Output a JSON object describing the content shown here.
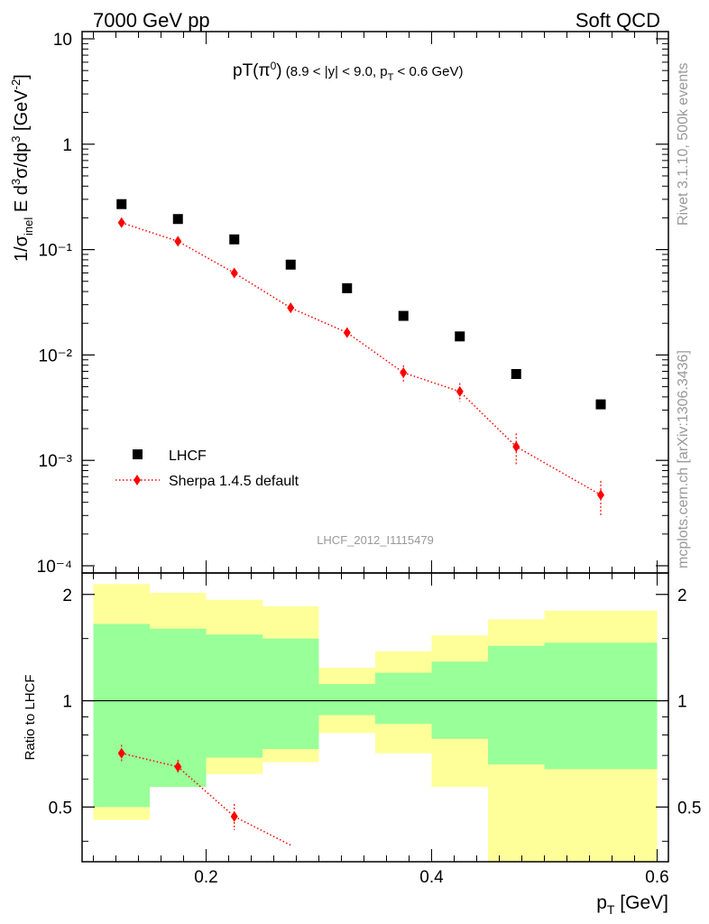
{
  "header": {
    "energy_label": "7000 GeV pp",
    "process_label": "Soft QCD"
  },
  "side_labels": {
    "rivet": "Rivet 3.1.10,  500k events",
    "mcplots": "mcplots.cern.ch [arXiv:1306.3436]"
  },
  "analysis_id": "LHCF_2012_I1115479",
  "colors": {
    "data": "#000000",
    "mc": "#ff0000",
    "band_inner": "#99ff99",
    "band_outer": "#ffff99"
  },
  "chart_data": [
    {
      "type": "scatter",
      "panel": "main",
      "title": "pT(π⁰) (8.9 < |y| < 9.0, pT < 0.6 GeV)",
      "ylabel": "1/σinel E d³σ/dp³ [GeV⁻²]",
      "yscale": "log",
      "ylim": [
        0.0001,
        10
      ],
      "xlim": [
        0.09,
        0.61
      ],
      "y_ticks": [
        "10",
        "1",
        "10⁻¹",
        "10⁻²",
        "10⁻³",
        "10⁻⁴"
      ],
      "legend_position": "bottom-left",
      "series": [
        {
          "name": "LHCF",
          "marker": "square",
          "x": [
            0.125,
            0.175,
            0.225,
            0.275,
            0.325,
            0.375,
            0.425,
            0.475,
            0.55
          ],
          "y": [
            0.27,
            0.195,
            0.125,
            0.072,
            0.043,
            0.0235,
            0.015,
            0.0066,
            0.0034
          ]
        },
        {
          "name": "Sherpa 1.4.5 default",
          "marker": "diamond",
          "line": "dotted",
          "x": [
            0.125,
            0.175,
            0.225,
            0.275,
            0.325,
            0.375,
            0.425,
            0.475,
            0.55
          ],
          "y": [
            0.18,
            0.12,
            0.06,
            0.028,
            0.0163,
            0.0068,
            0.0045,
            0.00135,
            0.00047
          ],
          "y_err_up": [
            0.016,
            0.01,
            0.006,
            0.003,
            0.0018,
            0.0012,
            0.0009,
            0.00045,
            0.00017
          ],
          "y_err_down": [
            0.016,
            0.01,
            0.006,
            0.003,
            0.0018,
            0.0012,
            0.0009,
            0.00045,
            0.00017
          ]
        }
      ]
    },
    {
      "type": "area",
      "panel": "ratio",
      "xlabel": "pT [GeV]",
      "ylabel": "Ratio to LHCF",
      "ylim": [
        0.35,
        2.3
      ],
      "xlim": [
        0.09,
        0.61
      ],
      "x_ticks": [
        "0.2",
        "0.4",
        "0.6"
      ],
      "y_ticks": [
        "0.5",
        "1",
        "2"
      ],
      "bins": [
        [
          0.1,
          0.15
        ],
        [
          0.15,
          0.2
        ],
        [
          0.2,
          0.25
        ],
        [
          0.25,
          0.3
        ],
        [
          0.3,
          0.35
        ],
        [
          0.35,
          0.4
        ],
        [
          0.4,
          0.45
        ],
        [
          0.45,
          0.5
        ],
        [
          0.5,
          0.6
        ]
      ],
      "band_inner": {
        "low": [
          0.5,
          0.57,
          0.69,
          0.73,
          0.91,
          0.86,
          0.78,
          0.66,
          0.64
        ],
        "high": [
          1.65,
          1.6,
          1.54,
          1.5,
          1.115,
          1.2,
          1.29,
          1.43,
          1.46
        ]
      },
      "band_outer": {
        "low": [
          0.46,
          0.57,
          0.62,
          0.67,
          0.81,
          0.71,
          0.57,
          0.0,
          0.0
        ],
        "high": [
          2.14,
          2.02,
          1.93,
          1.85,
          1.24,
          1.38,
          1.53,
          1.7,
          1.8
        ]
      },
      "reference_line": 1,
      "series": [
        {
          "name": "Sherpa 1.4.5 default",
          "x": [
            0.125,
            0.175,
            0.225,
            0.275
          ],
          "y": [
            0.71,
            0.65,
            0.47,
            0.39
          ],
          "y_err": [
            0.04,
            0.03,
            0.04,
            0.0
          ]
        }
      ]
    }
  ]
}
